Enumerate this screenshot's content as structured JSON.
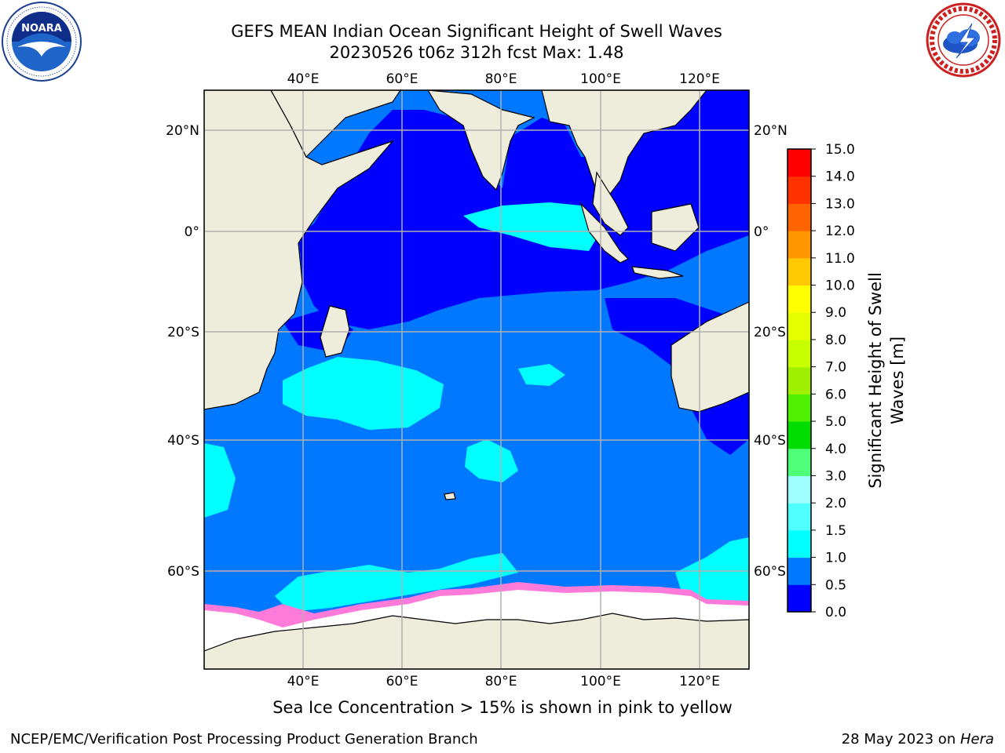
{
  "title": {
    "line1": "GEFS MEAN Indian Ocean Significant Height of Swell Waves",
    "line2": "20230526 t06z 312h fcst    Max: 1.48"
  },
  "logos": {
    "left": {
      "name": "NOARA",
      "ring_text": "NATIONAL OCEANIC AND ATMOSPHERIC ADMINISTRATION · U.S. DEPARTMENT OF COMMERCE"
    },
    "right": {
      "name": "NATIONAL WEATHER SERVICE"
    }
  },
  "map": {
    "lon_range": [
      20,
      130
    ],
    "lat_range": [
      -74,
      27
    ],
    "lon_ticks": [
      {
        "value": 40,
        "label": "40°E"
      },
      {
        "value": 60,
        "label": "60°E"
      },
      {
        "value": 80,
        "label": "80°E"
      },
      {
        "value": 100,
        "label": "100°E"
      },
      {
        "value": 120,
        "label": "120°E"
      }
    ],
    "lat_ticks": [
      {
        "value": 20,
        "label": "20°N"
      },
      {
        "value": 0,
        "label": "0°"
      },
      {
        "value": -20,
        "label": "20°S"
      },
      {
        "value": -40,
        "label": "40°S"
      },
      {
        "value": -60,
        "label": "60°S"
      }
    ],
    "land_color": "#eeeddc",
    "ice_color": "#ffffff",
    "grid_color": "#b0b0b0"
  },
  "colorbar": {
    "title_line1": "Significant Height of Swell",
    "title_line2": "Waves [m]",
    "levels": [
      "0.0",
      "0.5",
      "1.0",
      "1.5",
      "2.0",
      "3.0",
      "4.0",
      "5.0",
      "6.0",
      "7.0",
      "8.0",
      "9.0",
      "10.0",
      "11.0",
      "12.0",
      "13.0",
      "14.0",
      "15.0"
    ],
    "colors": [
      "#0000ff",
      "#0078ff",
      "#00ffff",
      "#50ffff",
      "#a0ffff",
      "#50ff78",
      "#00dc00",
      "#50ee00",
      "#a0ee00",
      "#c8ff00",
      "#e6ff00",
      "#ffff00",
      "#ffc800",
      "#ff9600",
      "#ff6400",
      "#ff3200",
      "#ff0000"
    ]
  },
  "caption": "Sea Ice Concentration > 15% is shown in pink to yellow",
  "credit": "NCEP/EMC/Verification Post Processing Product Generation Branch",
  "date": {
    "text": "28 May 2023 on ",
    "host": "Hera"
  }
}
